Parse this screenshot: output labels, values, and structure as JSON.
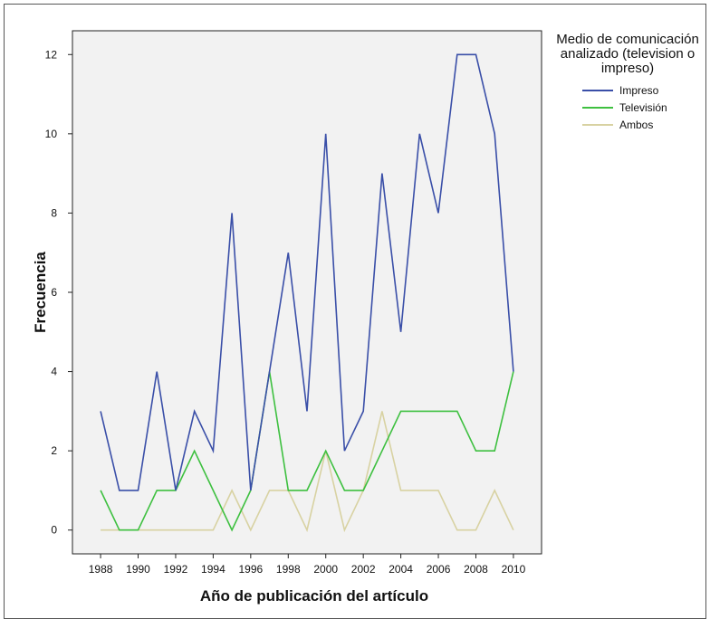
{
  "chart_data": {
    "type": "line",
    "title": "",
    "xlabel": "Año de publicación del artículo",
    "ylabel": "Frecuencia",
    "x": [
      1988,
      1989,
      1990,
      1991,
      1992,
      1993,
      1994,
      1995,
      1996,
      1997,
      1998,
      1999,
      2000,
      2001,
      2002,
      2003,
      2004,
      2005,
      2006,
      2007,
      2008,
      2009,
      2010
    ],
    "xticks": [
      "1988",
      "1990",
      "1992",
      "1994",
      "1996",
      "1998",
      "2000",
      "2002",
      "2004",
      "2006",
      "2008",
      "2010"
    ],
    "yticks": [
      "0",
      "2",
      "4",
      "6",
      "8",
      "10",
      "12"
    ],
    "ylim": [
      -0.6,
      12.6
    ],
    "xlim": [
      1986.5,
      2011.5
    ],
    "grid": false,
    "legend_placement": "right",
    "legend_title": "Medio de comunicación analizado (television o impreso)",
    "series": [
      {
        "name": "Impreso",
        "color": "#3a4fa8",
        "values": [
          3,
          1,
          1,
          4,
          1,
          3,
          2,
          8,
          1,
          4,
          7,
          3,
          10,
          2,
          3,
          9,
          5,
          10,
          8,
          12,
          12,
          10,
          4
        ]
      },
      {
        "name": "Televisión",
        "color": "#3ec040",
        "values": [
          1,
          0,
          0,
          1,
          1,
          2,
          1,
          0,
          1,
          4,
          1,
          1,
          2,
          1,
          1,
          2,
          3,
          3,
          3,
          3,
          2,
          2,
          4
        ]
      },
      {
        "name": "Ambos",
        "color": "#d8d2a2",
        "values": [
          0,
          0,
          0,
          0,
          0,
          0,
          0,
          1,
          0,
          1,
          1,
          0,
          2,
          0,
          1,
          3,
          1,
          1,
          1,
          0,
          0,
          1,
          0
        ]
      }
    ]
  },
  "colors": {
    "plot_background": "#f2f2f2",
    "axis": "#222222"
  }
}
